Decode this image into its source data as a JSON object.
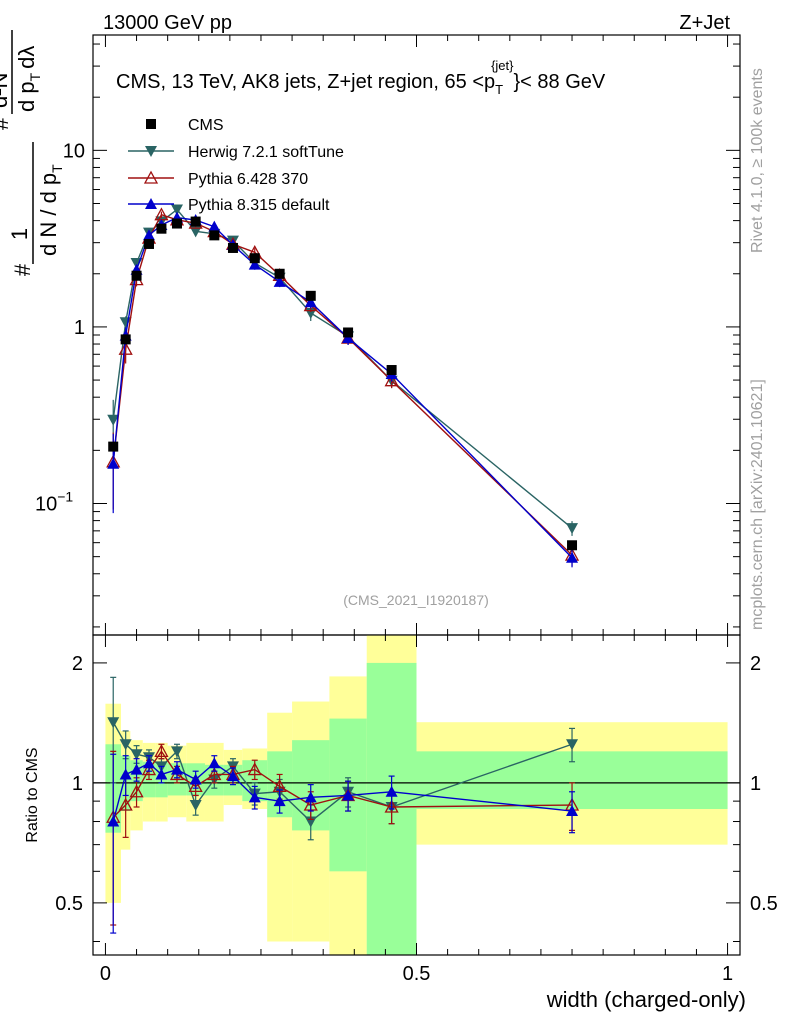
{
  "header": {
    "left_label": "13000 GeV pp",
    "right_label": "Z+Jet"
  },
  "side_labels": {
    "rivet": "Rivet 4.1.0, ≥ 100k events",
    "mcplots": "mcplots.cern.ch [arXiv:2401.10621]"
  },
  "chart_data": {
    "type": "line",
    "title_parts": {
      "prefix": "CMS, 13 TeV, AK8 jets, Z+jet region, 65 <p",
      "sub": "T",
      "sup": "{jet}",
      "suffix": "}< 88 GeV"
    },
    "analysis_id": "(CMS_2021_I1920187)",
    "ylabel_main": {
      "num": "1",
      "den_a": "d N / d p",
      "den_a_sub": "T",
      "frac2_num": "d²N",
      "frac2_den": "d p",
      "frac2_den_sub": "T",
      "frac2_den_tail": "dλ",
      "prefix_hash": "#",
      "den_hash": "#"
    },
    "ylabel_ratio": "Ratio to CMS",
    "xlabel": "width (charged-only)",
    "xlim": [
      -0.02,
      1.02
    ],
    "ylim_main": [
      0.018,
      45
    ],
    "ylim_ratio": [
      0.37,
      2.35
    ],
    "yscale_main": "log",
    "yscale_ratio": "log",
    "x_ticks": [
      {
        "value": 0,
        "label": "0"
      },
      {
        "value": 0.5,
        "label": "0.5"
      },
      {
        "value": 1,
        "label": "1"
      }
    ],
    "y_ticks_main": [
      {
        "value": 10,
        "label": "10"
      },
      {
        "value": 1,
        "label": "1"
      },
      {
        "value": 0.1,
        "label": "10",
        "sup": "−1"
      }
    ],
    "y_ticks_ratio": [
      {
        "value": 2,
        "label": "2"
      },
      {
        "value": 1,
        "label": "1"
      },
      {
        "value": 0.5,
        "label": "0.5"
      }
    ],
    "legend_position": "top-left",
    "bin_edges": [
      0,
      0.025,
      0.04,
      0.06,
      0.08,
      0.1,
      0.13,
      0.16,
      0.19,
      0.22,
      0.26,
      0.3,
      0.36,
      0.42,
      0.5,
      1.0
    ],
    "bin_centers": [
      0.0125,
      0.0325,
      0.05,
      0.07,
      0.09,
      0.115,
      0.145,
      0.175,
      0.205,
      0.24,
      0.28,
      0.33,
      0.39,
      0.46,
      0.75
    ],
    "series": [
      {
        "name": "CMS",
        "color": "#000000",
        "marker": "square",
        "values": [
          0.21,
          0.85,
          1.95,
          2.95,
          3.6,
          3.85,
          3.95,
          3.3,
          2.8,
          2.45,
          2.0,
          1.5,
          0.93,
          0.57,
          0.058
        ],
        "band_green": [
          [
            0.75,
            1.25
          ],
          [
            0.85,
            1.17
          ],
          [
            0.9,
            1.14
          ],
          [
            0.92,
            1.13
          ],
          [
            0.92,
            1.13
          ],
          [
            0.93,
            1.12
          ],
          [
            0.93,
            1.12
          ],
          [
            0.93,
            1.11
          ],
          [
            0.93,
            1.11
          ],
          [
            0.9,
            1.14
          ],
          [
            0.82,
            1.2
          ],
          [
            0.76,
            1.28
          ],
          [
            0.6,
            1.45
          ],
          [
            0.3,
            2.0
          ],
          [
            0.86,
            1.2
          ]
        ],
        "band_yellow": [
          [
            0.5,
            1.58
          ],
          [
            0.68,
            1.35
          ],
          [
            0.76,
            1.28
          ],
          [
            0.8,
            1.26
          ],
          [
            0.8,
            1.26
          ],
          [
            0.82,
            1.24
          ],
          [
            0.8,
            1.26
          ],
          [
            0.8,
            1.26
          ],
          [
            0.88,
            1.21
          ],
          [
            0.86,
            1.22
          ],
          [
            0.4,
            1.5
          ],
          [
            0.4,
            1.6
          ],
          [
            0.3,
            1.85
          ],
          [
            0.2,
            2.5
          ],
          [
            0.7,
            1.42
          ]
        ]
      },
      {
        "name": "Herwig 7.2.1 softTune",
        "color": "#2a6464",
        "marker": "triangle-down",
        "ratio": [
          1.42,
          1.25,
          1.18,
          1.16,
          1.1,
          1.2,
          0.88,
          1.02,
          1.1,
          0.94,
          0.95,
          0.8,
          0.95,
          0.87,
          1.25
        ],
        "ratio_err": [
          0.42,
          0.1,
          0.06,
          0.05,
          0.05,
          0.05,
          0.05,
          0.05,
          0.05,
          0.06,
          0.07,
          0.08,
          0.08,
          0.08,
          0.12
        ]
      },
      {
        "name": "Pythia 6.428 370",
        "color": "#a01010",
        "marker": "triangle-open",
        "ratio": [
          0.82,
          0.88,
          0.95,
          1.08,
          1.2,
          1.05,
          0.98,
          1.05,
          1.05,
          1.08,
          0.98,
          0.88,
          0.93,
          0.87,
          0.88
        ],
        "ratio_err": [
          0.38,
          0.15,
          0.08,
          0.06,
          0.05,
          0.05,
          0.05,
          0.05,
          0.05,
          0.06,
          0.07,
          0.07,
          0.08,
          0.08,
          0.12
        ]
      },
      {
        "name": "Pythia 8.315 default",
        "color": "#0000cc",
        "marker": "triangle-up",
        "ratio": [
          0.8,
          1.05,
          1.08,
          1.12,
          1.05,
          1.08,
          1.02,
          1.12,
          1.04,
          0.92,
          0.9,
          0.92,
          0.93,
          0.95,
          0.85
        ],
        "ratio_err": [
          0.38,
          0.12,
          0.07,
          0.05,
          0.05,
          0.05,
          0.05,
          0.05,
          0.05,
          0.06,
          0.06,
          0.07,
          0.08,
          0.09,
          0.1
        ]
      }
    ]
  }
}
